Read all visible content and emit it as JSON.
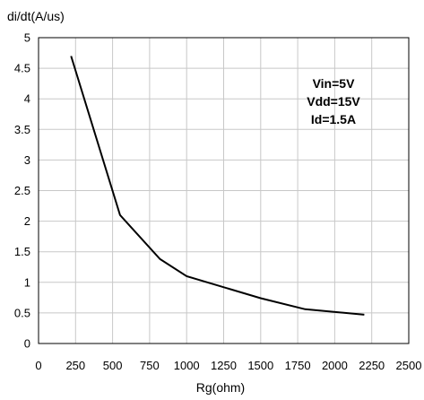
{
  "chart_data": {
    "type": "line",
    "title": "",
    "xlabel": "Rg(ohm)",
    "ylabel": "di/dt(A/us)",
    "xlim": [
      0,
      2500
    ],
    "ylim": [
      0,
      5
    ],
    "xticks": [
      "0",
      "250",
      "500",
      "750",
      "1000",
      "1250",
      "1500",
      "1750",
      "2000",
      "2250",
      "2500"
    ],
    "yticks": [
      "0",
      "0.5",
      "1",
      "1.5",
      "2",
      "2.5",
      "3",
      "3.5",
      "4",
      "4.5",
      "5"
    ],
    "grid": true,
    "series": [
      {
        "x": [
          220,
          550,
          820,
          1000,
          1500,
          1800,
          2200
        ],
        "y": [
          4.7,
          2.1,
          1.38,
          1.1,
          0.74,
          0.56,
          0.47
        ]
      }
    ],
    "annotations": [
      "Vin=5V",
      "Vdd=15V",
      "Id=1.5A"
    ],
    "line_color": "#000000",
    "grid_color": "#c8c8c8"
  }
}
